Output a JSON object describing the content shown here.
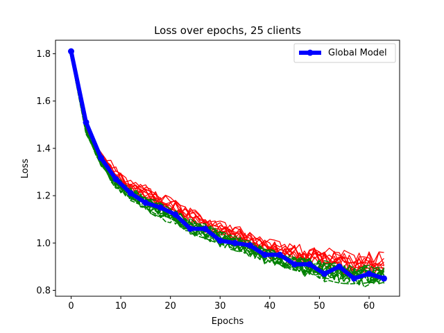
{
  "chart_data": {
    "type": "line",
    "title": "Loss over epochs, 25 clients",
    "xlabel": "Epochs",
    "ylabel": "Loss",
    "xlim": [
      -3.15,
      66.15
    ],
    "ylim": [
      0.775,
      1.857
    ],
    "xticks": [
      0,
      10,
      20,
      30,
      40,
      50,
      60
    ],
    "yticks": [
      0.8,
      1.0,
      1.2,
      1.4,
      1.6,
      1.8
    ],
    "grid": false,
    "legend": {
      "position": "top-right",
      "entries": [
        "Global Model"
      ]
    },
    "client_colors": {
      "upper": "#ff0000",
      "lower": "#008000"
    },
    "client_count": 25,
    "client_lower_share": 0.6,
    "series": [
      {
        "name": "Global Model",
        "color": "#0000ff",
        "marker": "circle",
        "x": [
          0,
          3,
          6,
          9,
          12,
          15,
          18,
          21,
          24,
          27,
          30,
          33,
          36,
          39,
          42,
          45,
          48,
          51,
          54,
          57,
          60,
          63
        ],
        "y": [
          1.81,
          1.51,
          1.36,
          1.27,
          1.21,
          1.17,
          1.15,
          1.12,
          1.06,
          1.06,
          1.01,
          1.0,
          0.99,
          0.95,
          0.95,
          0.91,
          0.91,
          0.87,
          0.9,
          0.85,
          0.87,
          0.85
        ]
      }
    ],
    "client_band": {
      "x": [
        0,
        3,
        6,
        9,
        12,
        15,
        18,
        21,
        24,
        27,
        30,
        33,
        36,
        39,
        42,
        45,
        48,
        51,
        54,
        57,
        60,
        63
      ],
      "low": [
        1.78,
        1.46,
        1.32,
        1.24,
        1.19,
        1.15,
        1.12,
        1.09,
        1.05,
        1.03,
        1.0,
        0.98,
        0.96,
        0.93,
        0.91,
        0.89,
        0.88,
        0.86,
        0.85,
        0.84,
        0.84,
        0.84
      ],
      "high": [
        1.81,
        1.5,
        1.38,
        1.3,
        1.25,
        1.22,
        1.19,
        1.16,
        1.12,
        1.1,
        1.07,
        1.05,
        1.03,
        1.0,
        0.98,
        0.97,
        0.96,
        0.95,
        0.94,
        0.93,
        0.93,
        0.93
      ]
    }
  }
}
